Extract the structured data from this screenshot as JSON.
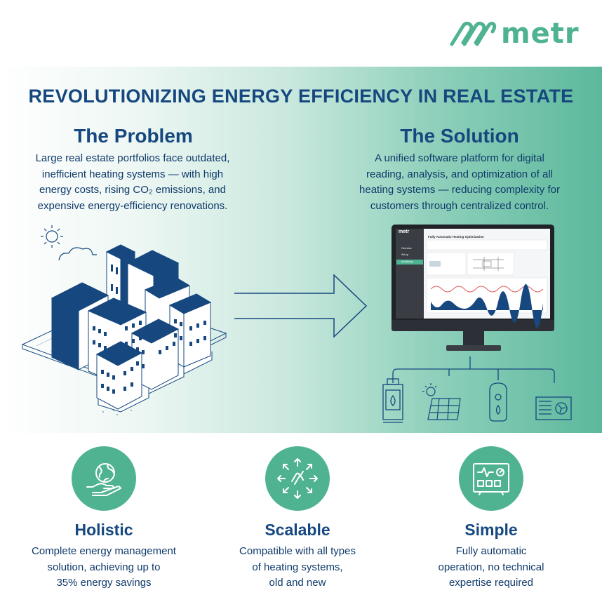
{
  "brand": {
    "name": "metr",
    "accent": "#4fb392",
    "navy": "#16487f"
  },
  "headline": "REVOLUTIONIZING ENERGY EFFICIENCY IN REAL ESTATE",
  "problem": {
    "title": "The Problem",
    "lines": [
      "Large real estate portfolios face outdated,",
      "inefficient heating systems — with high",
      "energy costs, rising CO₂ emissions, and",
      "expensive energy-efficiency renovations."
    ]
  },
  "solution": {
    "title": "The Solution",
    "lines": [
      "A unified software platform for digital",
      "reading, analysis, and optimization of all",
      "heating systems — reducing complexity for",
      "customers through centralized control."
    ]
  },
  "monitor_ui": {
    "brand": "metr",
    "title": "Fully Automatic Heating Optimization",
    "nav": [
      "Overview",
      "Set up",
      "Monitoring"
    ]
  },
  "illustrations": {
    "problem": "isometric-city-buildings",
    "connector": "arrow-right-icon",
    "devices": [
      "boiler-icon",
      "solar-panel-icon",
      "heat-pump-icon",
      "hvac-unit-icon"
    ]
  },
  "features": [
    {
      "icon": "globe-hand-icon",
      "title": "Holistic",
      "lines": [
        "Complete energy management",
        "solution, achieving up to",
        "35% energy savings"
      ]
    },
    {
      "icon": "scale-arrows-icon",
      "title": "Scalable",
      "lines": [
        "Compatible with all types",
        "of heating systems,",
        "old and new"
      ]
    },
    {
      "icon": "dashboard-panel-icon",
      "title": "Simple",
      "lines": [
        "Fully automatic",
        "operation, no technical",
        "expertise required"
      ]
    }
  ]
}
